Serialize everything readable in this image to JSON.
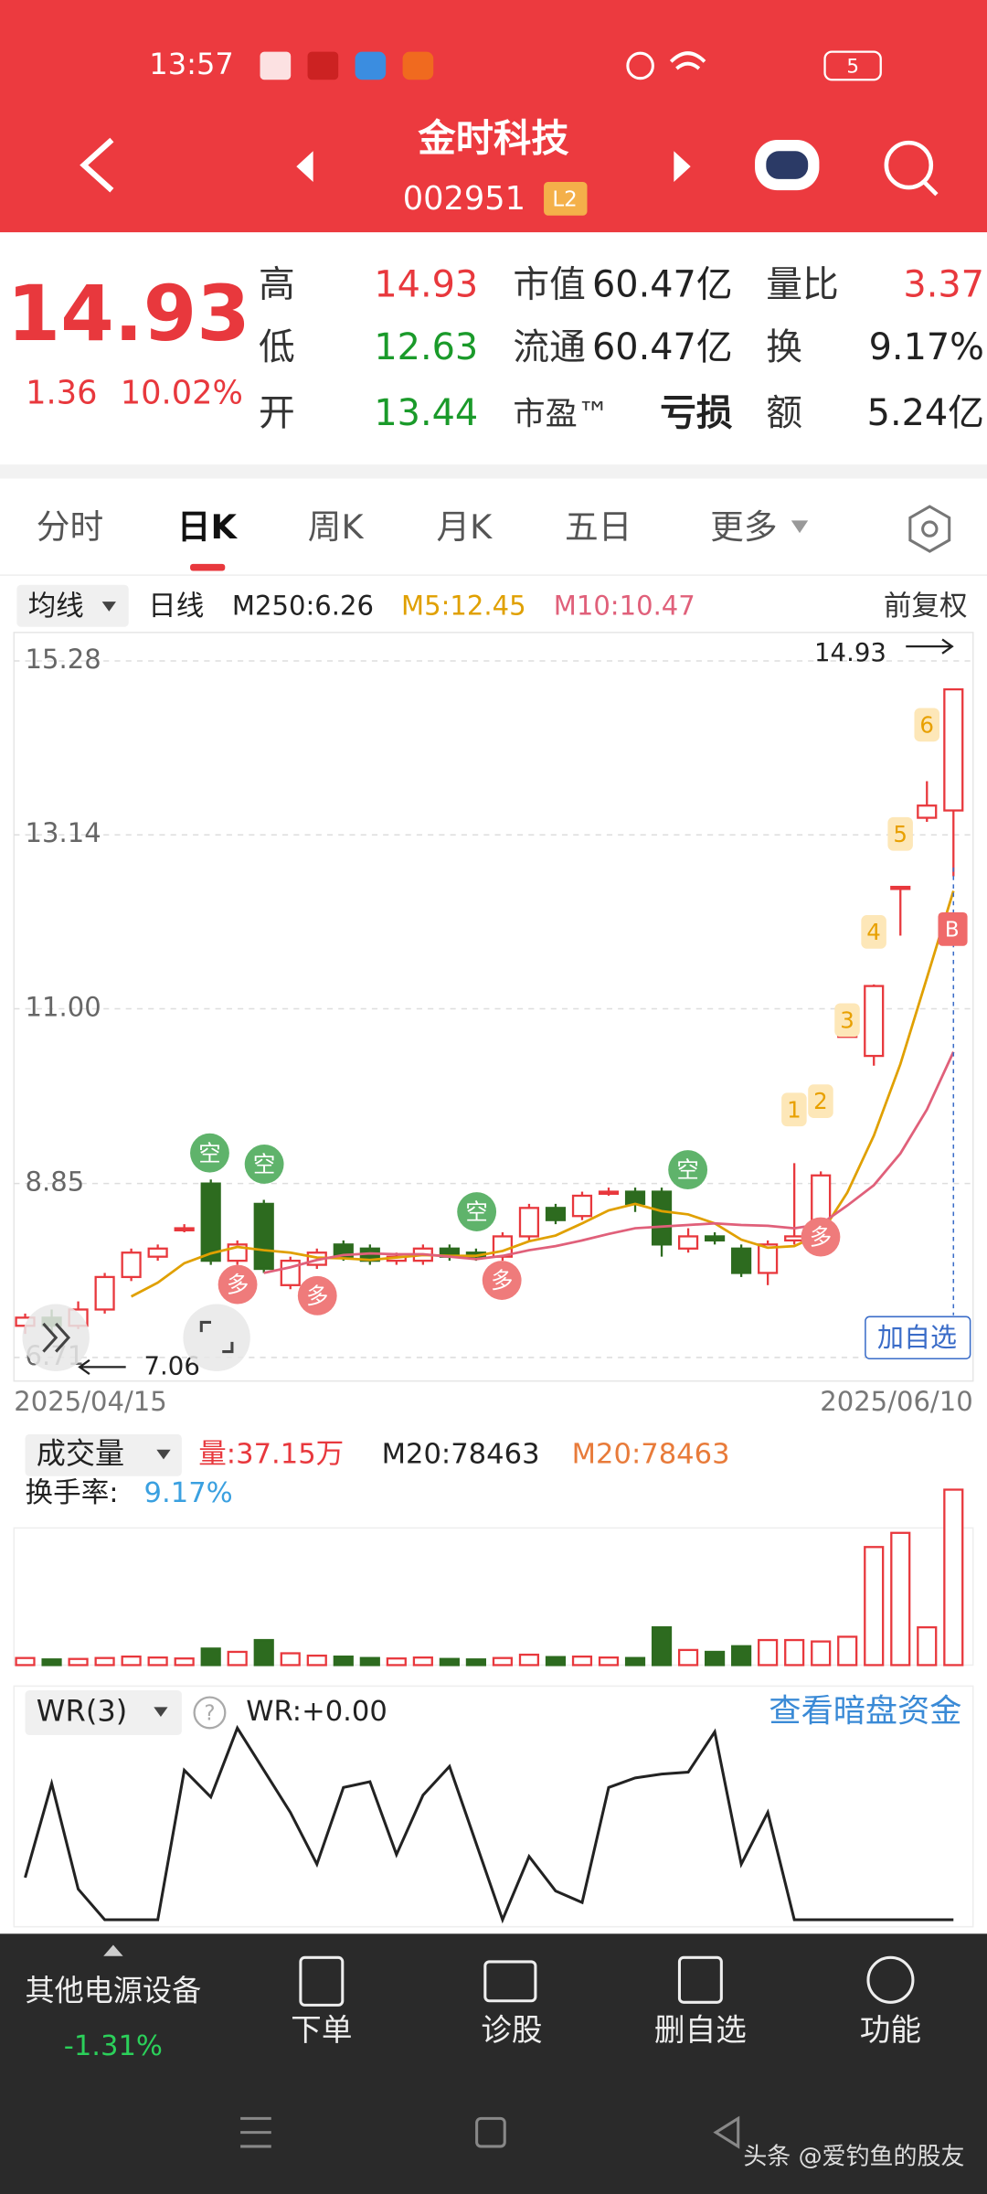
{
  "status_bar": {
    "time": "13:57",
    "battery": "5"
  },
  "header": {
    "name": "金时科技",
    "code": "002951",
    "badge": "L2"
  },
  "quote": {
    "price": "14.93",
    "change": "1.36",
    "change_pct": "10.02%",
    "stats": [
      {
        "label": "高",
        "value": "14.93"
      },
      {
        "label": "低",
        "value": "12.63"
      },
      {
        "label": "开",
        "value": "13.44"
      },
      {
        "label": "市值",
        "value": "60.47亿"
      },
      {
        "label": "流通",
        "value": "60.47亿"
      },
      {
        "label": "市盈™",
        "value": "亏损"
      },
      {
        "label": "量比",
        "value": "3.37"
      },
      {
        "label": "换",
        "value": "9.17%"
      },
      {
        "label": "额",
        "value": "5.24亿"
      }
    ]
  },
  "tabs": [
    "分时",
    "日K",
    "周K",
    "月K",
    "五日",
    "更多"
  ],
  "indicator_bar": {
    "ma_menu": "均线",
    "period": "日线",
    "m250": "M250:6.26",
    "m5": "M5:12.45",
    "m10": "M10:10.47",
    "adjust": "前复权"
  },
  "chart_annotations": {
    "high": "14.93",
    "low": "7.06",
    "add": "加自选",
    "buy": "B",
    "signals": [
      "空",
      "空",
      "空",
      "空",
      "多",
      "多",
      "多",
      "多"
    ],
    "steps": [
      "1",
      "2",
      "3",
      "4",
      "5",
      "6"
    ]
  },
  "chart_data": [
    {
      "type": "candlestick",
      "categories": [
        "2025/04/15",
        null,
        null,
        null,
        null,
        null,
        null,
        null,
        null,
        null,
        null,
        null,
        null,
        null,
        null,
        null,
        null,
        null,
        null,
        null,
        null,
        null,
        null,
        null,
        null,
        null,
        null,
        null,
        null,
        null,
        null,
        null,
        null,
        null,
        null,
        "2025/06/10"
      ],
      "open": [
        7.1,
        7.2,
        7.1,
        7.3,
        7.7,
        7.95,
        8.3,
        8.85,
        7.9,
        8.6,
        7.6,
        7.85,
        8.1,
        8.05,
        7.9,
        7.9,
        8.05,
        8.0,
        7.95,
        8.2,
        8.55,
        8.45,
        8.75,
        8.75,
        8.75,
        8.05,
        8.2,
        8.05,
        7.75,
        8.15,
        8.3,
        10.68,
        10.42,
        12.5,
        13.35,
        13.44
      ],
      "high": [
        7.25,
        7.3,
        7.4,
        7.75,
        8.05,
        8.1,
        8.35,
        8.9,
        8.15,
        8.65,
        7.95,
        8.05,
        8.15,
        8.1,
        8.0,
        8.1,
        8.1,
        8.05,
        8.25,
        8.6,
        8.6,
        8.75,
        8.8,
        8.8,
        8.8,
        8.3,
        8.25,
        8.1,
        8.15,
        9.1,
        9.0,
        10.68,
        11.3,
        12.5,
        13.8,
        14.93
      ],
      "low": [
        7.0,
        7.0,
        7.06,
        7.25,
        7.65,
        7.9,
        8.25,
        7.85,
        7.85,
        7.75,
        7.55,
        7.8,
        7.9,
        7.85,
        7.85,
        7.85,
        7.9,
        7.9,
        7.9,
        8.15,
        8.35,
        8.4,
        8.7,
        8.5,
        7.95,
        8.0,
        8.1,
        7.7,
        7.6,
        8.1,
        8.25,
        10.68,
        10.3,
        11.9,
        13.3,
        12.63
      ],
      "close": [
        7.2,
        7.1,
        7.3,
        7.7,
        8.0,
        8.05,
        8.3,
        7.9,
        8.1,
        7.8,
        7.9,
        8.0,
        7.95,
        7.9,
        7.95,
        8.05,
        7.95,
        7.95,
        8.2,
        8.55,
        8.4,
        8.7,
        8.75,
        8.6,
        8.1,
        8.2,
        8.15,
        7.75,
        8.1,
        8.2,
        8.95,
        10.68,
        11.28,
        12.5,
        13.5,
        14.93
      ],
      "up_color": "#e8383d",
      "down_color": "#2d6b1f",
      "series": [
        {
          "name": "M5",
          "color": "#e0a000",
          "values": [
            null,
            null,
            null,
            null,
            7.46,
            7.63,
            7.87,
            7.99,
            8.07,
            8.03,
            8.0,
            7.94,
            7.93,
            7.91,
            7.94,
            7.97,
            7.96,
            7.96,
            8.02,
            8.14,
            8.21,
            8.36,
            8.52,
            8.6,
            8.51,
            8.47,
            8.36,
            8.16,
            8.06,
            8.08,
            8.23,
            8.74,
            9.44,
            10.32,
            11.38,
            12.45
          ]
        },
        {
          "name": "M10",
          "color": "#e0607a",
          "values": [
            null,
            null,
            null,
            null,
            null,
            null,
            null,
            null,
            null,
            7.75,
            7.82,
            7.91,
            7.97,
            7.99,
            7.98,
            7.98,
            7.95,
            7.92,
            7.96,
            8.03,
            8.08,
            8.15,
            8.23,
            8.3,
            8.32,
            8.34,
            8.36,
            8.34,
            8.33,
            8.3,
            8.35,
            8.58,
            8.83,
            9.22,
            9.76,
            10.47
          ]
        }
      ],
      "ylim": [
        6.42,
        15.63
      ],
      "yticks": [
        15.28,
        13.14,
        {
          "value": 11,
          "label": "11.00"
        },
        8.85,
        6.71
      ],
      "grid": true
    },
    {
      "type": "bar",
      "values": [
        1.5,
        1.2,
        1.3,
        1.5,
        1.8,
        1.6,
        1.4,
        3.5,
        2.8,
        5.3,
        2.5,
        2.0,
        1.8,
        1.5,
        1.4,
        1.6,
        1.3,
        1.2,
        1.5,
        2.2,
        1.7,
        1.8,
        1.6,
        1.5,
        8.0,
        3.2,
        2.8,
        4.0,
        5.3,
        5.3,
        5.0,
        6.0,
        25,
        28,
        8,
        37.15
      ],
      "ylim": [
        0,
        40
      ]
    },
    {
      "type": "line",
      "color": "#222222",
      "values": [
        22,
        71,
        16,
        0,
        0,
        0,
        78,
        64,
        100,
        78,
        56,
        29,
        69,
        72,
        34,
        65,
        80,
        40,
        0,
        33,
        15,
        9,
        69,
        74,
        76,
        77,
        98,
        29,
        56,
        0,
        0,
        0,
        0,
        0,
        0,
        0
      ],
      "ylim": [
        0,
        100
      ]
    }
  ],
  "volume_header": {
    "menu": "成交量",
    "vol": "量:37.15万",
    "m20a": "M20:78463",
    "m20b": "M20:78463",
    "turnover_label": "换手率:",
    "turnover": "9.17%"
  },
  "wr_header": {
    "menu": "WR(3)",
    "help": "?",
    "value": "WR:+0.00",
    "link": "查看暗盘资金"
  },
  "footer": {
    "sector": "其他电源设备",
    "sector_change": "-1.31%",
    "buttons": [
      "下单",
      "诊股",
      "删自选",
      "功能"
    ]
  },
  "watermark": "头条 @爱钓鱼的股友"
}
